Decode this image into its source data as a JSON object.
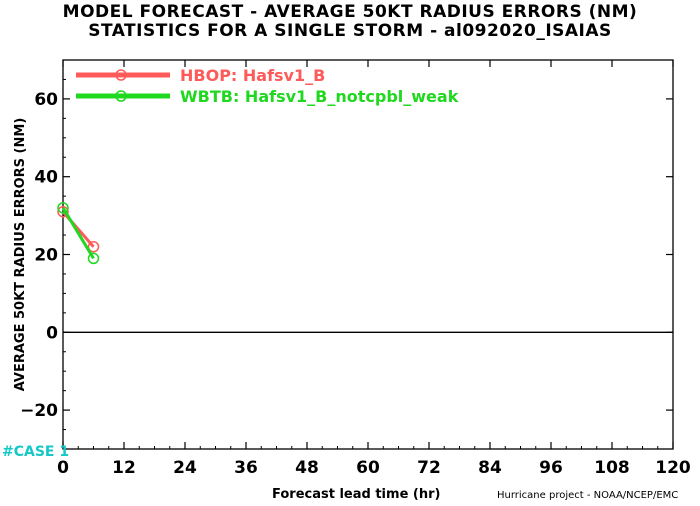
{
  "header": {
    "title_line1": "MODEL FORECAST - AVERAGE 50KT RADIUS ERRORS (NM)",
    "title_line2": "STATISTICS FOR A SINGLE STORM - al092020_ISAIAS"
  },
  "footer": {
    "case_label": "#CASE  1",
    "credit": "Hurricane project - NOAA/NCEP/EMC"
  },
  "chart_data": {
    "type": "line",
    "title": "MODEL FORECAST - AVERAGE 50KT RADIUS ERRORS (NM)",
    "subtitle": "STATISTICS FOR A SINGLE STORM - al092020_ISAIAS",
    "xlabel": "Forecast lead time (hr)",
    "ylabel": "AVERAGE 50KT RADIUS ERRORS (NM)",
    "xlim": [
      0,
      120
    ],
    "ylim": [
      -30,
      70
    ],
    "xticks": [
      0,
      12,
      24,
      36,
      48,
      60,
      72,
      84,
      96,
      108,
      120
    ],
    "yticks": [
      -20,
      0,
      20,
      40,
      60
    ],
    "zero_line": true,
    "grid": false,
    "legend_position": "top-left",
    "series": [
      {
        "name": "HBOP: Hafsv1_B",
        "color": "#ff5a5a",
        "x": [
          0,
          6
        ],
        "y": [
          31,
          22
        ]
      },
      {
        "name": "WBTB: Hafsv1_B_notcpbl_weak",
        "color": "#1fd81f",
        "x": [
          0,
          6
        ],
        "y": [
          32,
          19
        ]
      }
    ]
  }
}
